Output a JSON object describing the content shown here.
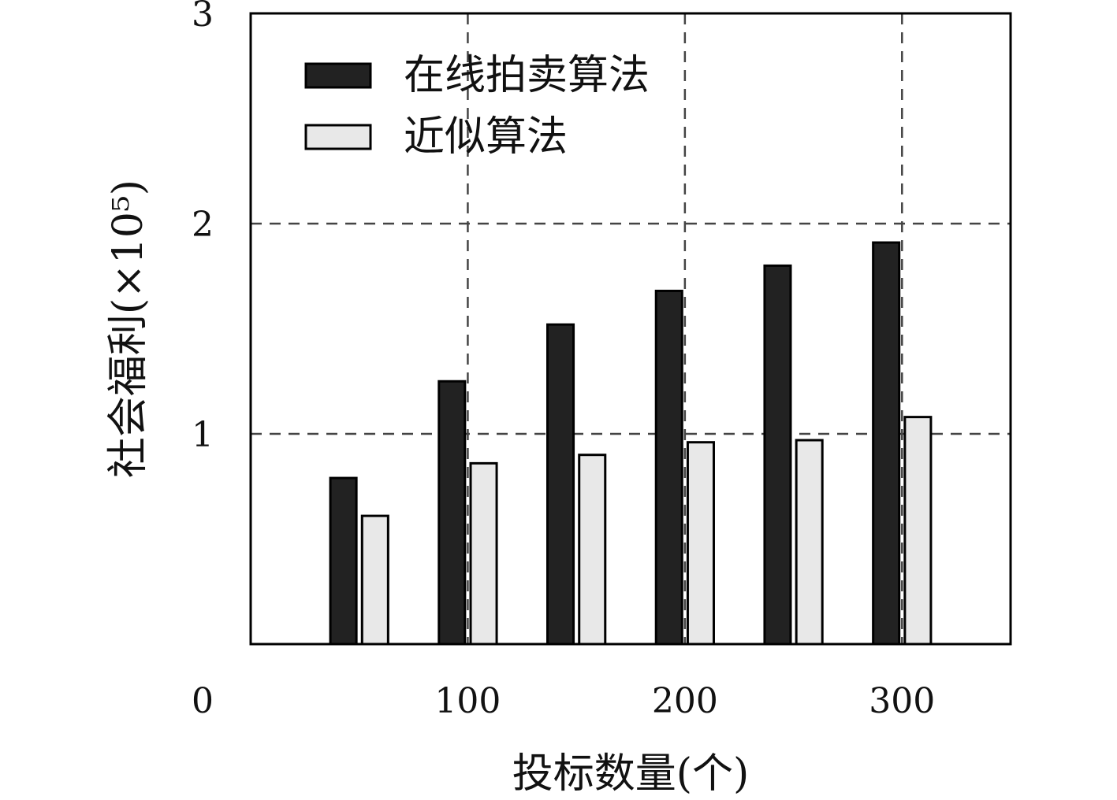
{
  "chart_data": {
    "type": "bar",
    "x": [
      50,
      100,
      150,
      200,
      250,
      300
    ],
    "series": [
      {
        "name": "在线拍卖算法",
        "values": [
          0.79,
          1.25,
          1.52,
          1.68,
          1.8,
          1.91
        ],
        "color": "#222222"
      },
      {
        "name": "近似算法",
        "values": [
          0.61,
          0.86,
          0.9,
          0.96,
          0.97,
          1.08
        ],
        "color": "#e8e8e8"
      }
    ],
    "xlabel": "投标数量(个)",
    "ylabel": "社会福利(×10⁵)",
    "xlim": [
      0,
      350
    ],
    "ylim": [
      0,
      3
    ],
    "xticks": [
      0,
      100,
      200,
      300
    ],
    "yticks": [
      0,
      1,
      2,
      3
    ],
    "grid": true,
    "legend_position": "top-left"
  }
}
